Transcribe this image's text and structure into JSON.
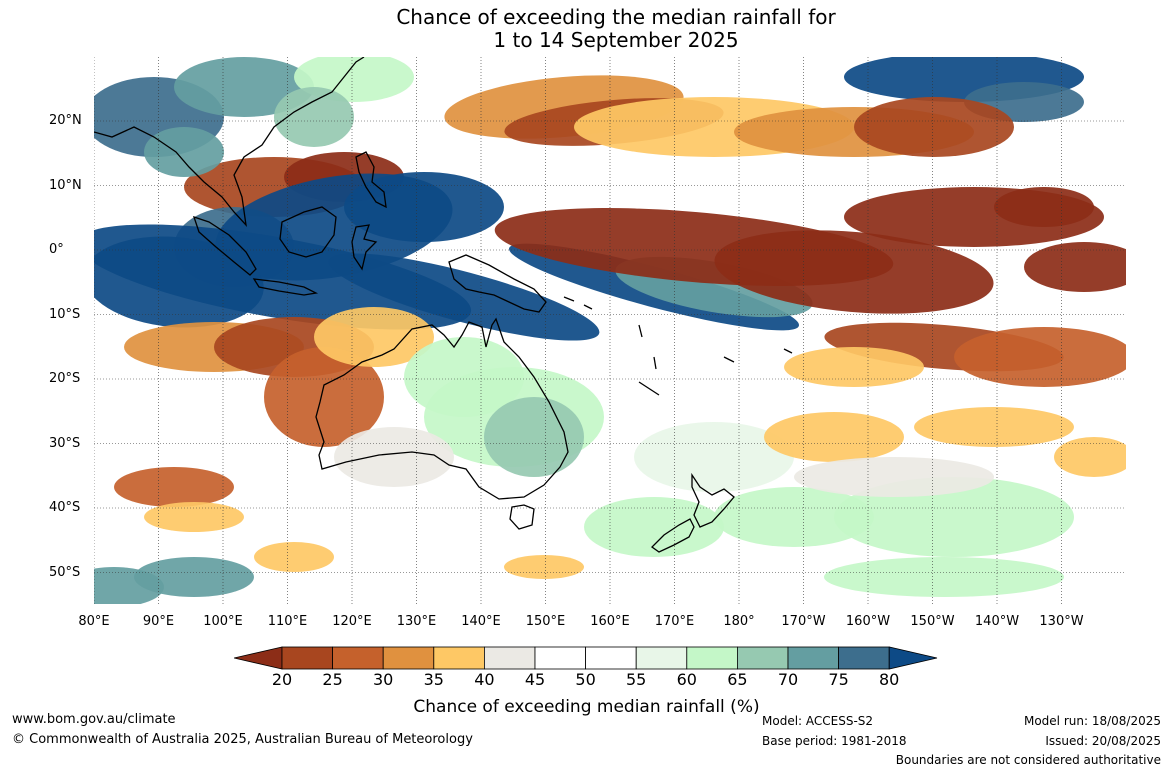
{
  "title": {
    "line1": "Chance of exceeding the median rainfall for",
    "line2": "1 to 14 September 2025"
  },
  "map": {
    "lat_labels": [
      "20°N",
      "10°N",
      "0°",
      "10°S",
      "20°S",
      "30°S",
      "40°S",
      "50°S"
    ],
    "lon_labels": [
      "80°E",
      "90°E",
      "100°E",
      "110°E",
      "120°E",
      "130°E",
      "140°E",
      "150°E",
      "160°E",
      "170°E",
      "180°",
      "170°W",
      "160°W",
      "150°W",
      "140°W",
      "130°W"
    ],
    "land_outline_color": "#000000"
  },
  "colorbar": {
    "label": "Chance of exceeding median rainfall (%)",
    "ticks": [
      "20",
      "25",
      "30",
      "35",
      "40",
      "45",
      "50",
      "55",
      "60",
      "65",
      "70",
      "75",
      "80"
    ],
    "colors": [
      "#8c2d17",
      "#a8461f",
      "#c5612c",
      "#e0913f",
      "#fec865",
      "#ebe9e4",
      "#ffffff",
      "#ffffff",
      "#e8f6e8",
      "#c4f7c8",
      "#96c9b1",
      "#649ea1",
      "#3d6e8d",
      "#0d4a86"
    ]
  },
  "footer": {
    "website": "www.bom.gov.au/climate",
    "copyright": "© Commonwealth of Australia 2025, Australian Bureau of Meteorology",
    "model": "Model: ACCESS-S2",
    "base_period": "Base period: 1981-2018",
    "model_run": "Model run: 18/08/2025",
    "issued": "Issued: 20/08/2025",
    "disclaimer": "Boundaries are not considered authoritative"
  }
}
